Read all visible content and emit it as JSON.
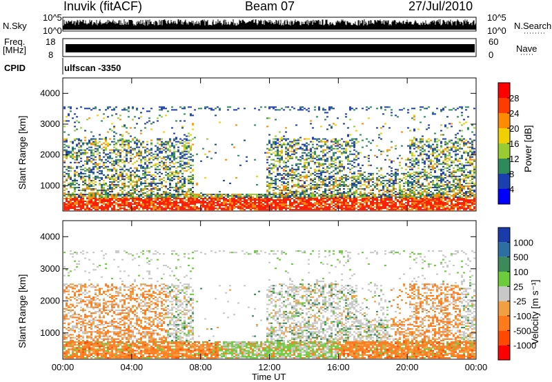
{
  "header": {
    "station": "Inuvik (fitACF)",
    "beam": "Beam 07",
    "date": "27/Jul/2010"
  },
  "strips": {
    "nsky_label": "N.Sky",
    "nsky_ticks": [
      "10^5",
      "10^0"
    ],
    "nsearch_label": "N.Search",
    "nsearch_ticks": [
      "10^5",
      "10^0"
    ],
    "freq_label": "Freq.",
    "freq_unit": "[MHz]",
    "freq_ticks": [
      "18",
      "8"
    ],
    "nave_label": "Nave",
    "nave_ticks": [
      "60",
      "0"
    ],
    "cpid_label": "CPID",
    "cpid_value": "ulfscan -3350"
  },
  "chart_data": [
    {
      "type": "heatmap",
      "name": "power",
      "ylabel": "Slant Range [km]",
      "yticks": [
        1000,
        2000,
        3000,
        4000
      ],
      "ylim": [
        180,
        4500
      ],
      "colorbar_label": "Power [dB]",
      "colorbar_ticks": [
        4,
        8,
        12,
        16,
        20,
        24,
        28
      ],
      "colorbar_colors": [
        "#0000ff",
        "#1c3fb0",
        "#2f8a5a",
        "#99cc33",
        "#f0d000",
        "#ff8c00",
        "#ff3b00",
        "#ff0000"
      ],
      "colorbar_range": [
        0,
        30
      ],
      "x_ticks": [
        "00:00",
        "04:00",
        "08:00",
        "12:00",
        "16:00",
        "20:00",
        "00:00"
      ],
      "xlim_hours": [
        0,
        24
      ]
    },
    {
      "type": "heatmap",
      "name": "velocity",
      "ylabel": "Slant Range [km]",
      "yticks": [
        1000,
        2000,
        3000,
        4000
      ],
      "ylim": [
        180,
        4500
      ],
      "colorbar_label": "Velocity [m s⁻¹]",
      "colorbar_ticks": [
        "1000",
        "500",
        "100",
        "25",
        "-25",
        "-100",
        "-500",
        "-1000"
      ],
      "colorbar_colors": [
        "#1a3caa",
        "#2c6fa0",
        "#3c8a5a",
        "#6ccc3c",
        "#c8c8c8",
        "#f0a040",
        "#ff7a1a",
        "#ff4a00",
        "#ff0000"
      ],
      "xlabel": "Time UT",
      "x_ticks": [
        "00:00",
        "04:00",
        "08:00",
        "12:00",
        "16:00",
        "20:00",
        "00:00"
      ],
      "xlim_hours": [
        0,
        24
      ]
    }
  ]
}
